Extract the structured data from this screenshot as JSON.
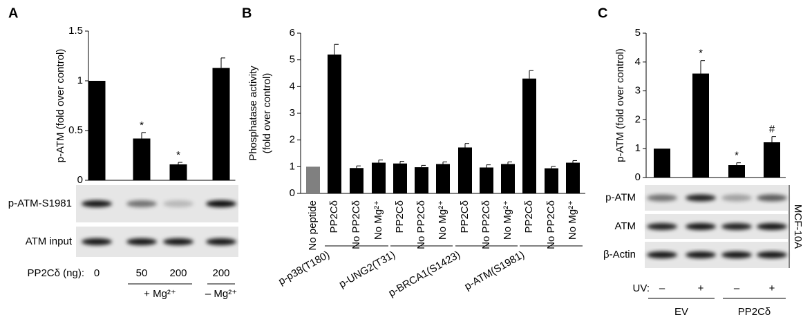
{
  "chart_data": [
    {
      "type": "bar",
      "panel": "A",
      "ylabel": "p-ATM (fold over control)",
      "categories": [
        "0",
        "50",
        "200",
        "200"
      ],
      "category_label": "PP2Cδ (ng):",
      "values": [
        1.0,
        0.42,
        0.16,
        1.13
      ],
      "errors": [
        null,
        0.06,
        0.02,
        0.1
      ],
      "markers": [
        null,
        "*",
        "*",
        null
      ],
      "color": "#000000",
      "ylim": [
        0,
        1.5
      ],
      "yticks": [
        0,
        0.5,
        1,
        1.5
      ],
      "blot_labels": [
        "p-ATM-S1981",
        "ATM input"
      ],
      "groups": [
        "+ Mg²⁺",
        "– Mg²⁺"
      ]
    },
    {
      "type": "bar",
      "panel": "B",
      "ylabel": [
        "Phosphatase activity",
        "(fold over control)"
      ],
      "categories": [
        "No peptide",
        "PP2Cδ",
        "No PP2Cδ",
        "No Mg²⁺",
        "PP2Cδ",
        "No PP2Cδ",
        "No Mg²⁺",
        "PP2Cδ",
        "No PP2Cδ",
        "No Mg²⁺",
        "PP2Cδ",
        "No PP2Cδ",
        "No Mg²⁺"
      ],
      "values": [
        1.0,
        5.2,
        0.95,
        1.15,
        1.12,
        0.98,
        1.1,
        1.72,
        0.97,
        1.1,
        4.3,
        0.94,
        1.15
      ],
      "errors": [
        null,
        0.38,
        0.08,
        0.1,
        0.08,
        0.07,
        0.08,
        0.15,
        0.1,
        0.08,
        0.3,
        0.07,
        0.08
      ],
      "colors": [
        "#808080",
        "#000000",
        "#000000",
        "#000000",
        "#000000",
        "#000000",
        "#000000",
        "#000000",
        "#000000",
        "#000000",
        "#000000",
        "#000000",
        "#000000"
      ],
      "ylim": [
        0,
        6
      ],
      "yticks": [
        0,
        1,
        2,
        3,
        4,
        5,
        6
      ],
      "groups": [
        "p-p38(T180)",
        "p-UNG2(T31)",
        "p-BRCA1(S1423)",
        "p-ATM(S1981)"
      ]
    },
    {
      "type": "bar",
      "panel": "C",
      "ylabel": "p-ATM (fold over control)",
      "categories": [
        "–",
        "+",
        "–",
        "+"
      ],
      "category_label": "UV:",
      "values": [
        1.0,
        3.6,
        0.43,
        1.22
      ],
      "errors": [
        null,
        0.45,
        0.08,
        0.2
      ],
      "markers": [
        null,
        "*",
        "*",
        "#"
      ],
      "color": "#000000",
      "ylim": [
        0,
        5
      ],
      "yticks": [
        0,
        1,
        2,
        3,
        4,
        5
      ],
      "blot_labels": [
        "p-ATM",
        "ATM",
        "β-Actin"
      ],
      "cell_line": "MCF-10A",
      "groups": [
        "EV",
        "PP2Cδ"
      ]
    }
  ]
}
